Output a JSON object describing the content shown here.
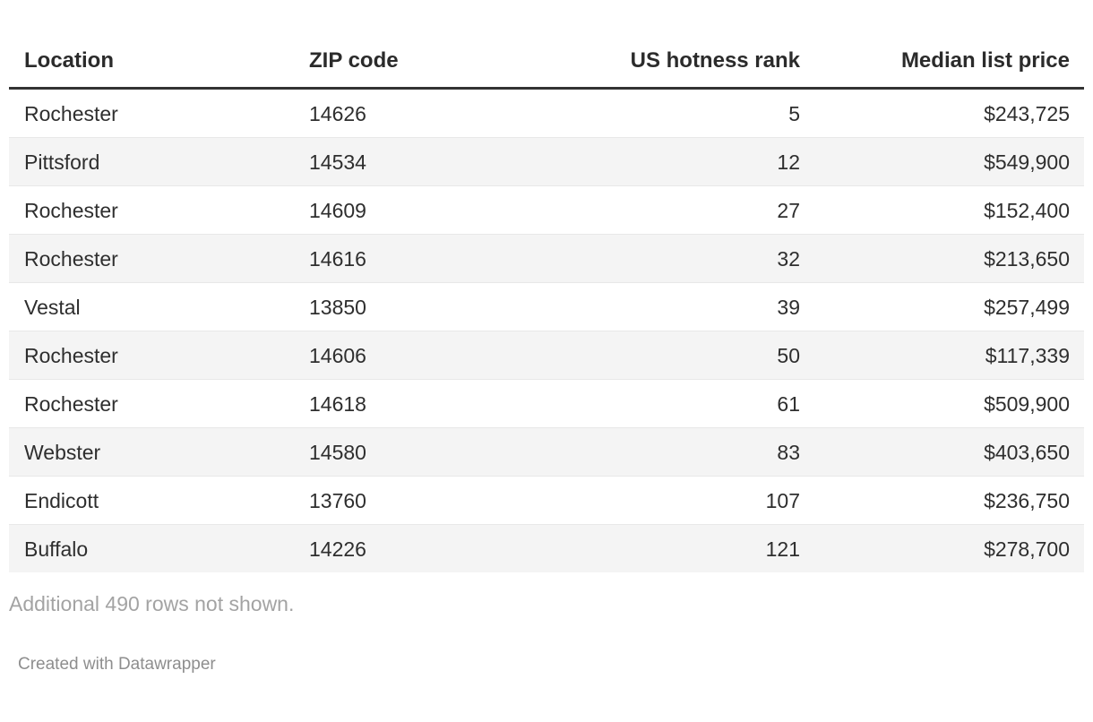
{
  "chart_data": {
    "type": "table",
    "columns": [
      {
        "label": "Location",
        "align": "left"
      },
      {
        "label": "ZIP code",
        "align": "left"
      },
      {
        "label": "US hotness rank",
        "align": "right"
      },
      {
        "label": "Median list price",
        "align": "right"
      }
    ],
    "rows": [
      {
        "location": "Rochester",
        "zip": "14626",
        "rank": 5,
        "price": "$243,725"
      },
      {
        "location": "Pittsford",
        "zip": "14534",
        "rank": 12,
        "price": "$549,900"
      },
      {
        "location": "Rochester",
        "zip": "14609",
        "rank": 27,
        "price": "$152,400"
      },
      {
        "location": "Rochester",
        "zip": "14616",
        "rank": 32,
        "price": "$213,650"
      },
      {
        "location": "Vestal",
        "zip": "13850",
        "rank": 39,
        "price": "$257,499"
      },
      {
        "location": "Rochester",
        "zip": "14606",
        "rank": 50,
        "price": "$117,339"
      },
      {
        "location": "Rochester",
        "zip": "14618",
        "rank": 61,
        "price": "$509,900"
      },
      {
        "location": "Webster",
        "zip": "14580",
        "rank": 83,
        "price": "$403,650"
      },
      {
        "location": "Endicott",
        "zip": "13760",
        "rank": 107,
        "price": "$236,750"
      },
      {
        "location": "Buffalo",
        "zip": "14226",
        "rank": 121,
        "price": "$278,700"
      }
    ],
    "note": "Additional 490 rows not shown.",
    "credit": "Created with Datawrapper",
    "layout_hints": {
      "zebra_striping": true,
      "header_rule": "thick-dark",
      "grid": "horizontal-only"
    }
  },
  "colors": {
    "background": "#ffffff",
    "text": "#2e2e2e",
    "header_text": "#2b2b2b",
    "header_rule": "#333333",
    "zebra_row": "#f4f4f4",
    "row_divider": "#e8e8e8",
    "note_text": "#a3a3a3",
    "credit_text": "#8e8e8e"
  }
}
